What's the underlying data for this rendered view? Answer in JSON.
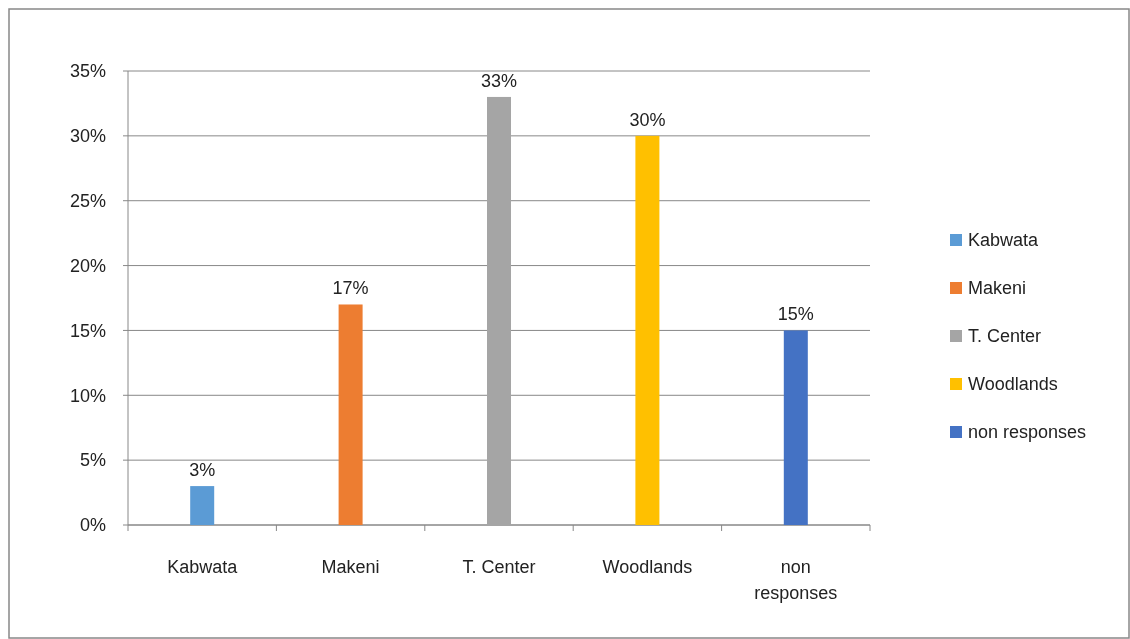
{
  "chart_data": {
    "type": "bar",
    "categories": [
      "Kabwata",
      "Makeni",
      "T. Center",
      "Woodlands",
      "non responses"
    ],
    "series": [
      {
        "name": "Kabwata",
        "color": "#5b9bd5",
        "values": [
          3,
          null,
          null,
          null,
          null
        ],
        "value_labels": [
          "3%",
          null,
          null,
          null,
          null
        ]
      },
      {
        "name": "Makeni",
        "color": "#ed7d31",
        "values": [
          null,
          17,
          null,
          null,
          null
        ],
        "value_labels": [
          null,
          "17%",
          null,
          null,
          null
        ]
      },
      {
        "name": "T. Center",
        "color": "#a5a5a5",
        "values": [
          null,
          null,
          33,
          null,
          null
        ],
        "value_labels": [
          null,
          null,
          "33%",
          null,
          null
        ]
      },
      {
        "name": "Woodlands",
        "color": "#ffc000",
        "values": [
          null,
          null,
          null,
          30,
          null
        ],
        "value_labels": [
          null,
          null,
          null,
          "30%",
          null
        ]
      },
      {
        "name": "non responses",
        "color": "#4472c4",
        "values": [
          null,
          null,
          null,
          null,
          15
        ],
        "value_labels": [
          null,
          null,
          null,
          null,
          "15%"
        ]
      }
    ],
    "ylim": [
      0,
      35
    ],
    "yticks": [
      {
        "value": 0,
        "label": "0%"
      },
      {
        "value": 5,
        "label": "5%"
      },
      {
        "value": 10,
        "label": "10%"
      },
      {
        "value": 15,
        "label": "15%"
      },
      {
        "value": 20,
        "label": "20%"
      },
      {
        "value": 25,
        "label": "25%"
      },
      {
        "value": 30,
        "label": "30%"
      },
      {
        "value": 35,
        "label": "35%"
      }
    ],
    "grid": true,
    "legend": "right"
  }
}
